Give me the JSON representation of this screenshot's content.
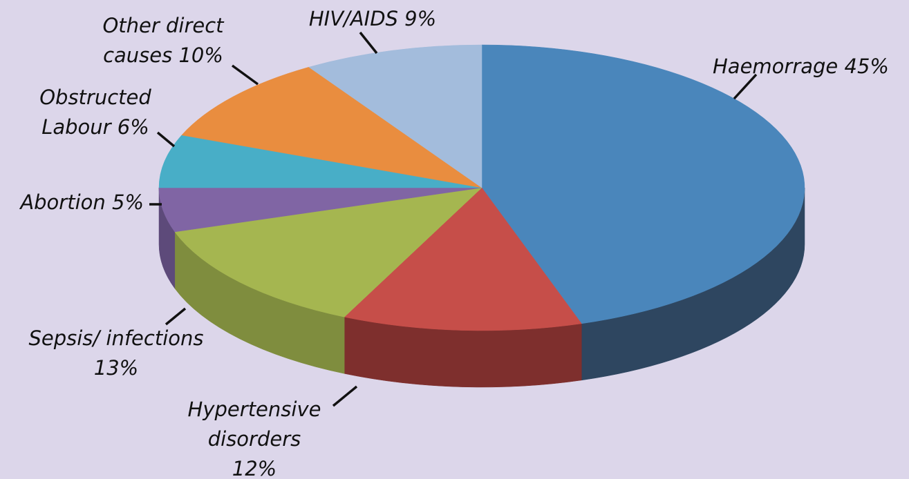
{
  "chart_data": {
    "type": "pie",
    "style": "3d-tilted",
    "slices": [
      {
        "label_lines": [
          "Haemorrage 45%"
        ],
        "name": "Haemorrage",
        "value": 45,
        "color": "#4a86bb",
        "side_color": "#2e4660"
      },
      {
        "label_lines": [
          "Hypertensive",
          "disorders",
          "12%"
        ],
        "name": "Hypertensive disorders",
        "value": 12,
        "color": "#c64e49",
        "side_color": "#7e2f2d"
      },
      {
        "label_lines": [
          "Sepsis/ infections",
          "13%"
        ],
        "name": "Sepsis/ infections",
        "value": 13,
        "color": "#a5b650",
        "side_color": "#7f8d3e"
      },
      {
        "label_lines": [
          "Abortion 5%"
        ],
        "name": "Abortion",
        "value": 5,
        "color": "#8065a4",
        "side_color": "#5d4a7a"
      },
      {
        "label_lines": [
          "Obstructed",
          "Labour 6%"
        ],
        "name": "Obstructed Labour",
        "value": 6,
        "color": "#48aec7",
        "side_color": "#327d90"
      },
      {
        "label_lines": [
          "Other direct",
          "causes 10%"
        ],
        "name": "Other direct causes",
        "value": 10,
        "color": "#e98d3f",
        "side_color": "#a9642b"
      },
      {
        "label_lines": [
          "HIV/AIDS 9%"
        ],
        "name": "HIV/AIDS",
        "value": 9,
        "color": "#a3bcdc",
        "side_color": "#7388a3"
      }
    ],
    "legend": "none",
    "unit": "%"
  }
}
